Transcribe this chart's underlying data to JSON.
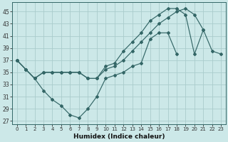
{
  "xlabel": "Humidex (Indice chaleur)",
  "background_color": "#cce8e8",
  "grid_color": "#aacccc",
  "line_color": "#336666",
  "xlim": [
    -0.5,
    23.5
  ],
  "ylim": [
    26.5,
    46.5
  ],
  "xticks": [
    0,
    1,
    2,
    3,
    4,
    5,
    6,
    7,
    8,
    9,
    10,
    11,
    12,
    13,
    14,
    15,
    16,
    17,
    18,
    19,
    20,
    21,
    22,
    23
  ],
  "yticks": [
    27,
    29,
    31,
    33,
    35,
    37,
    39,
    41,
    43,
    45
  ],
  "line_top_x": [
    0,
    1,
    2,
    3,
    4,
    5,
    6,
    7,
    8,
    9,
    10,
    11,
    12,
    13,
    14,
    15,
    16,
    17,
    18,
    19,
    20,
    21
  ],
  "line_top_y": [
    37,
    35.5,
    34,
    35,
    35,
    35,
    35,
    35,
    34,
    34,
    36,
    36.5,
    38.5,
    40,
    41.5,
    43.5,
    44.5,
    45.5,
    45.5,
    44.5,
    38,
    42
  ],
  "line_bot_x": [
    0,
    1,
    2,
    3,
    4,
    5,
    6,
    7,
    8,
    9,
    10,
    11,
    12,
    13,
    14,
    15,
    16,
    17,
    18
  ],
  "line_bot_y": [
    37,
    35.5,
    34,
    32,
    30.5,
    29.5,
    28,
    27.5,
    29,
    31,
    34,
    34.5,
    35,
    36,
    36.5,
    40.5,
    41.5,
    41.5,
    38
  ],
  "line_mid_x": [
    0,
    1,
    2,
    3,
    4,
    5,
    6,
    7,
    8,
    9,
    10,
    11,
    12,
    13,
    14,
    15,
    16,
    17,
    18,
    19,
    20,
    21,
    22,
    23
  ],
  "line_mid_y": [
    37,
    35.5,
    34,
    35,
    35,
    35,
    35,
    35,
    34,
    34,
    35.5,
    36,
    37,
    38.5,
    40,
    41.5,
    43,
    44,
    45,
    45.5,
    44.5,
    42,
    38.5,
    38
  ]
}
